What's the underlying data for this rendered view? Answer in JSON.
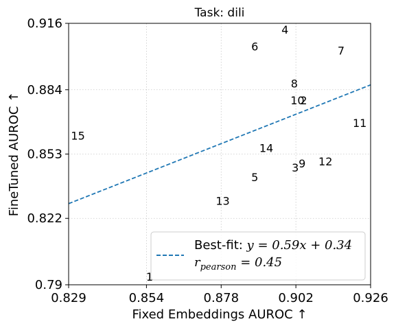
{
  "chart_data": {
    "type": "scatter",
    "title": "Task: dili",
    "xlabel": "Fixed Embeddings AUROC ↑",
    "ylabel": "FineTuned AUROC ↑",
    "xlim": [
      0.829,
      0.926
    ],
    "ylim": [
      0.79,
      0.916
    ],
    "xticks": [
      0.829,
      0.854,
      0.878,
      0.902,
      0.926
    ],
    "xtick_labels": [
      "0.829",
      "0.854",
      "0.878",
      "0.902",
      "0.926"
    ],
    "yticks": [
      0.79,
      0.822,
      0.853,
      0.884,
      0.916
    ],
    "ytick_labels": [
      "0.79",
      "0.822",
      "0.853",
      "0.884",
      "0.916"
    ],
    "grid": true,
    "points": [
      {
        "label": "1",
        "x": 0.855,
        "y": 0.794
      },
      {
        "label": "2",
        "x": 0.9045,
        "y": 0.879
      },
      {
        "label": "3",
        "x": 0.9018,
        "y": 0.8465
      },
      {
        "label": "4",
        "x": 0.8985,
        "y": 0.913
      },
      {
        "label": "5",
        "x": 0.8888,
        "y": 0.842
      },
      {
        "label": "6",
        "x": 0.8888,
        "y": 0.905
      },
      {
        "label": "7",
        "x": 0.9165,
        "y": 0.903
      },
      {
        "label": "8",
        "x": 0.9015,
        "y": 0.887
      },
      {
        "label": "9",
        "x": 0.904,
        "y": 0.8485
      },
      {
        "label": "10",
        "x": 0.9025,
        "y": 0.879
      },
      {
        "label": "11",
        "x": 0.9225,
        "y": 0.868
      },
      {
        "label": "12",
        "x": 0.9115,
        "y": 0.8495
      },
      {
        "label": "13",
        "x": 0.8785,
        "y": 0.8305
      },
      {
        "label": "14",
        "x": 0.8925,
        "y": 0.856
      },
      {
        "label": "15",
        "x": 0.832,
        "y": 0.862
      }
    ],
    "fit_line": {
      "slope": 0.59,
      "intercept": 0.34,
      "x_range": [
        0.829,
        0.926
      ],
      "color": "#1f77b4",
      "style": "dashed"
    },
    "legend": {
      "placement": "lower-right",
      "line1_prefix": "Best-fit: ",
      "line1_math": "y = 0.59x + 0.34",
      "line2_math_var": "r",
      "line2_math_sub": "pearson",
      "line2_math_rest": " = 0.45"
    }
  }
}
